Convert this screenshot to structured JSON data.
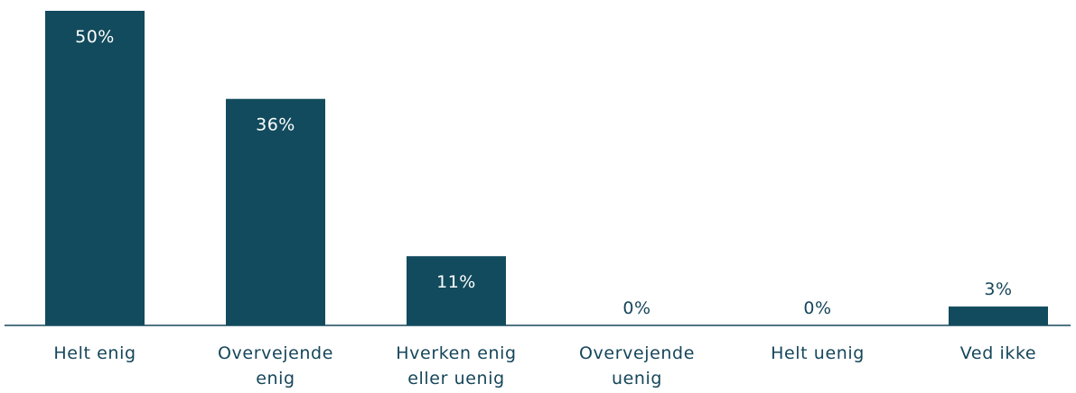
{
  "chart_data": {
    "type": "bar",
    "categories": [
      "Helt enig",
      "Overvejende enig",
      "Hverken enig eller uenig",
      "Overvejende uenig",
      "Helt uenig",
      "Ved ikke"
    ],
    "values": [
      50,
      36,
      11,
      0,
      0,
      3
    ],
    "value_labels": [
      "50%",
      "36%",
      "11%",
      "0%",
      "0%",
      "3%"
    ],
    "color": "#124b5e"
  }
}
